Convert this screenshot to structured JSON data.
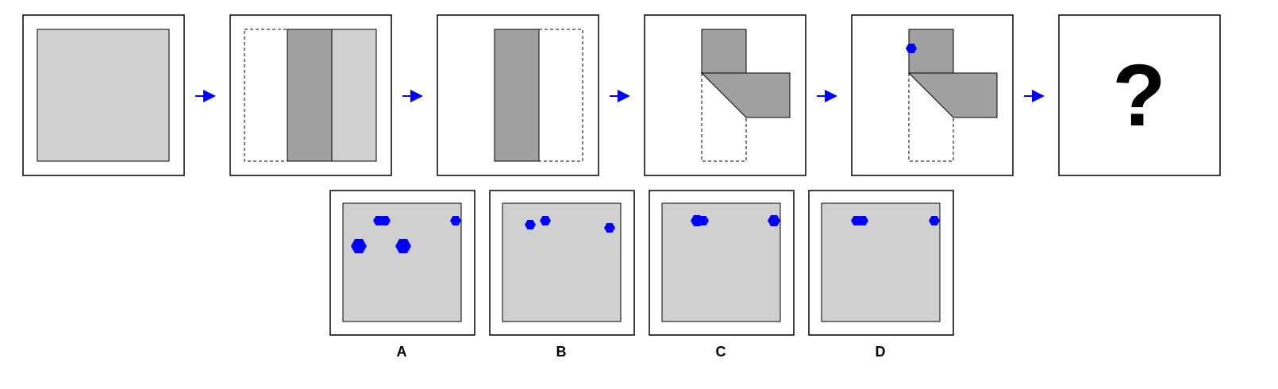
{
  "colors": {
    "paper": "#d0d0d0",
    "fold": "#a0a0a0",
    "hole": "#0000ff",
    "arrow": "#0000ff",
    "frame": "#000000"
  },
  "sequence": {
    "question_mark": "?"
  },
  "options": [
    {
      "label": "A"
    },
    {
      "label": "B"
    },
    {
      "label": "C"
    },
    {
      "label": "D"
    }
  ]
}
